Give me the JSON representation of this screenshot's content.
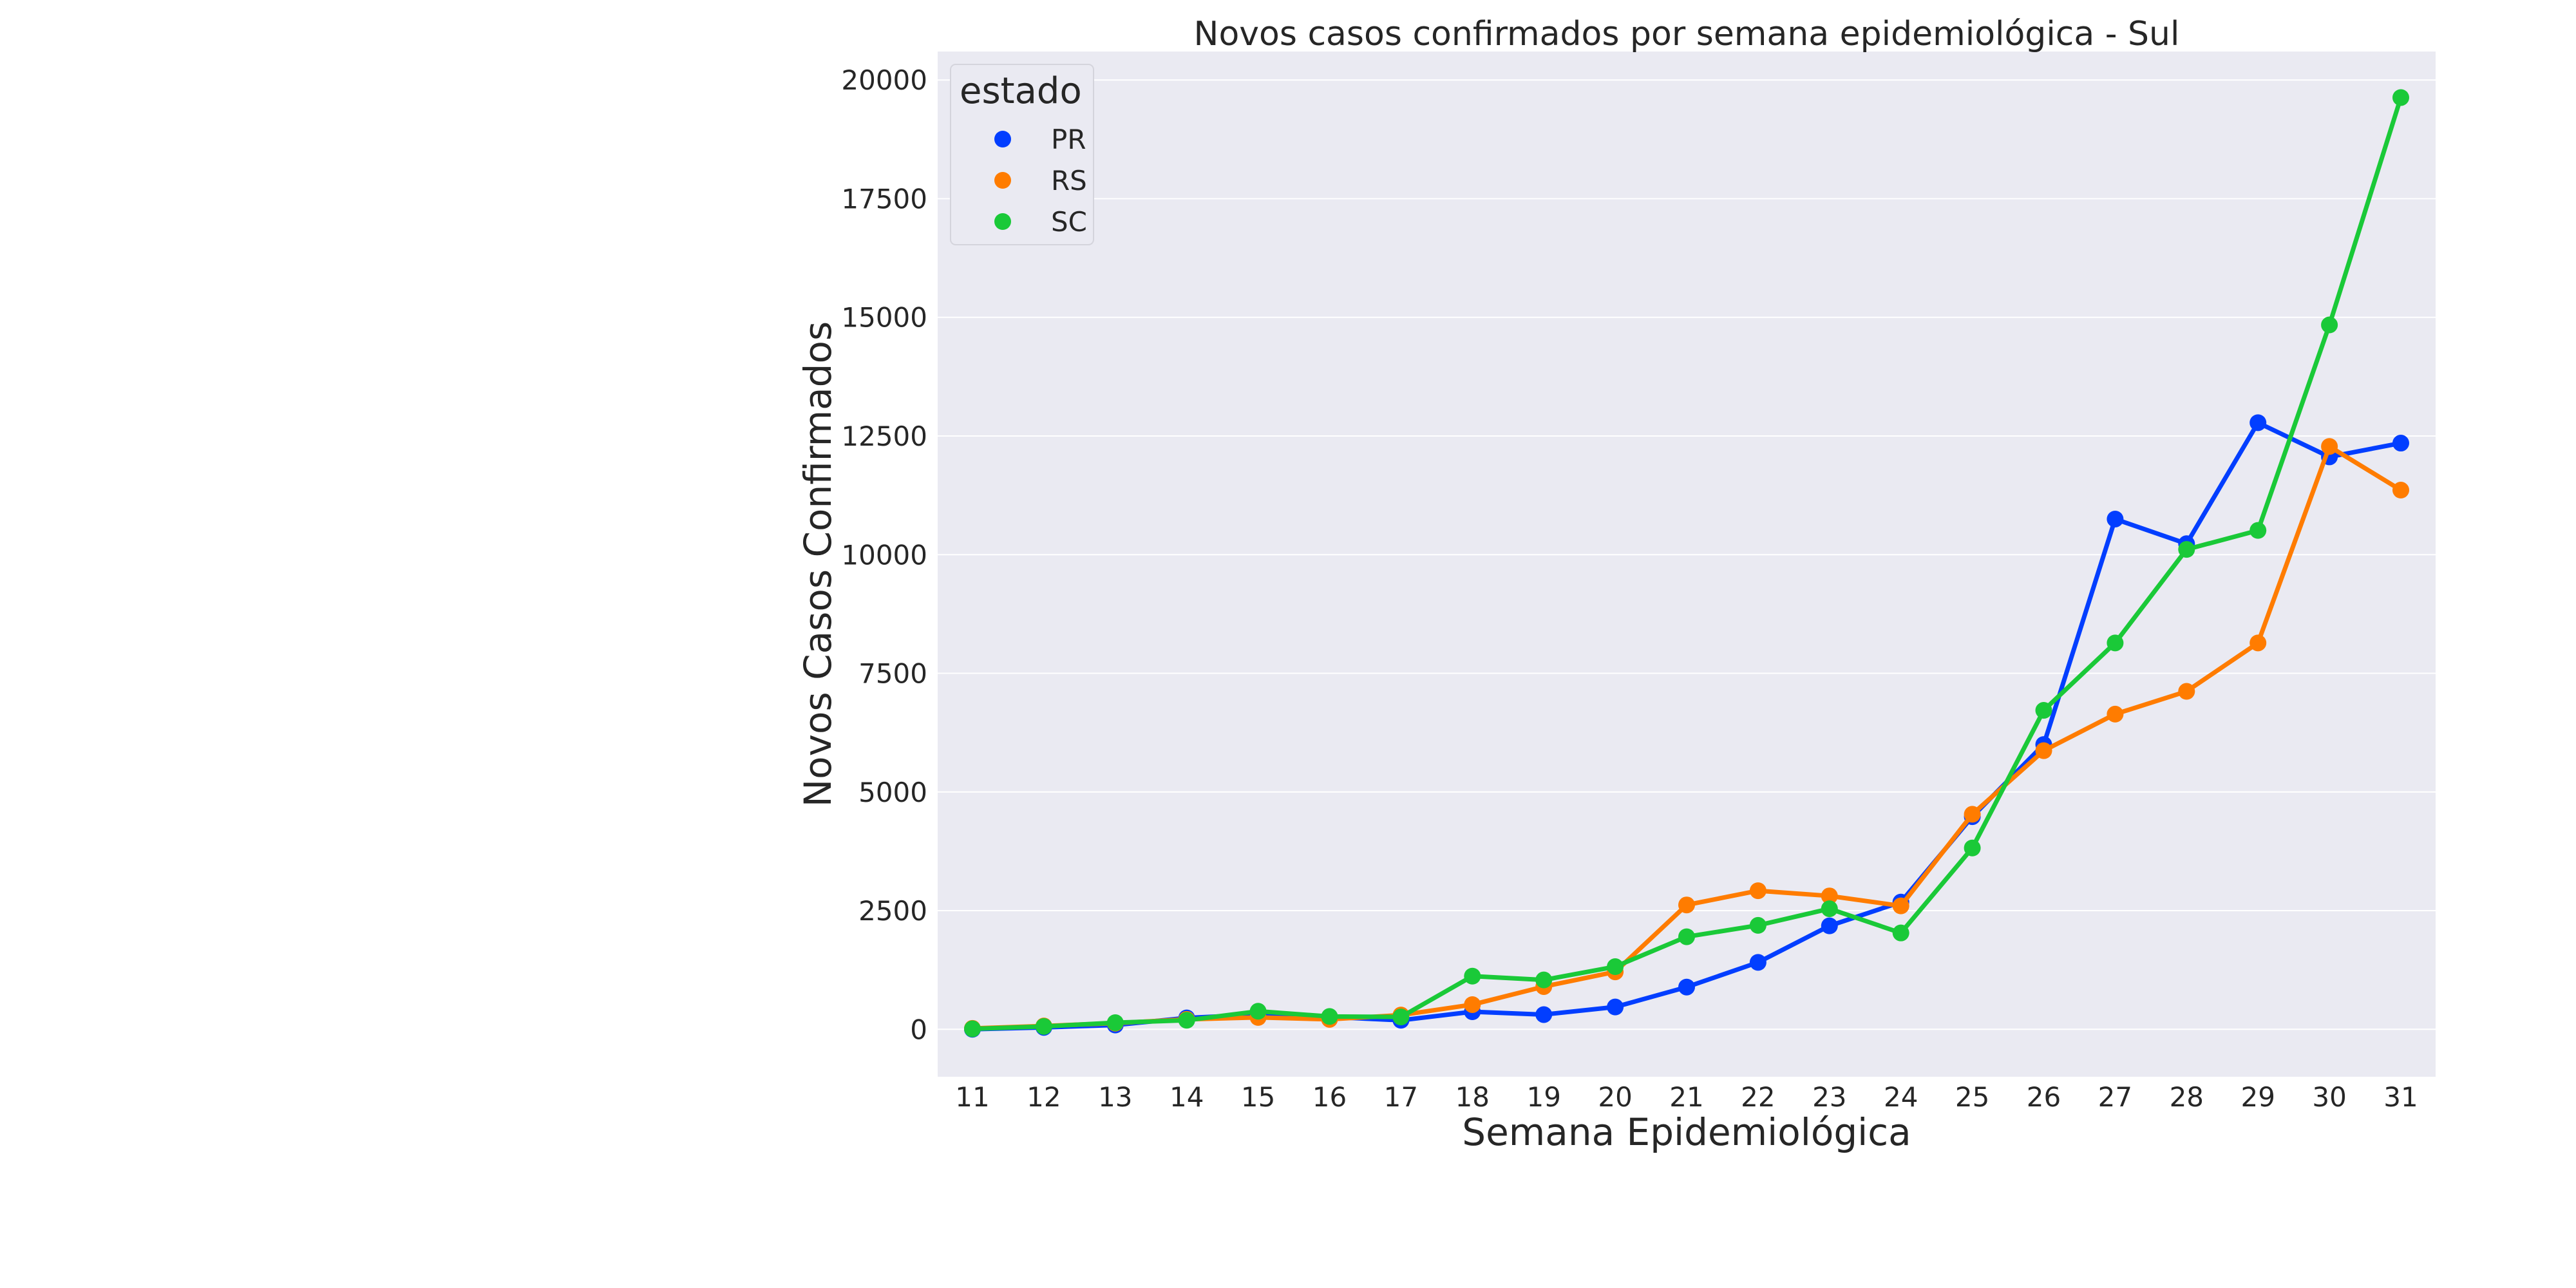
{
  "chart_data": {
    "type": "line",
    "title": "Novos casos confirmados por semana epidemiológica - Sul",
    "xlabel": "Semana Epidemiológica",
    "ylabel": "Novos Casos Confirmados",
    "categories": [
      "11",
      "12",
      "13",
      "14",
      "15",
      "16",
      "17",
      "18",
      "19",
      "20",
      "21",
      "22",
      "23",
      "24",
      "25",
      "26",
      "27",
      "28",
      "29",
      "30",
      "31"
    ],
    "yticks": [
      0,
      2500,
      5000,
      7500,
      10000,
      12500,
      15000,
      17500,
      20000
    ],
    "ylim": [
      -1000,
      20600
    ],
    "grid": true,
    "legend": {
      "title": "estado",
      "position": "top-left"
    },
    "series": [
      {
        "name": "PR",
        "color": "#023eff",
        "values": [
          0,
          40,
          90,
          240,
          310,
          260,
          190,
          370,
          310,
          470,
          890,
          1410,
          2180,
          2680,
          4480,
          6000,
          10750,
          10230,
          12780,
          12060,
          12350
        ]
      },
      {
        "name": "RS",
        "color": "#ff7c00",
        "values": [
          20,
          70,
          130,
          210,
          250,
          210,
          300,
          520,
          900,
          1210,
          2620,
          2920,
          2810,
          2600,
          4530,
          5870,
          6640,
          7120,
          8140,
          12280,
          11360
        ]
      },
      {
        "name": "SC",
        "color": "#1ac938",
        "values": [
          10,
          60,
          140,
          190,
          380,
          270,
          260,
          1120,
          1040,
          1320,
          1950,
          2190,
          2540,
          2030,
          3820,
          6720,
          8140,
          10110,
          10510,
          14840,
          19630
        ]
      }
    ]
  }
}
